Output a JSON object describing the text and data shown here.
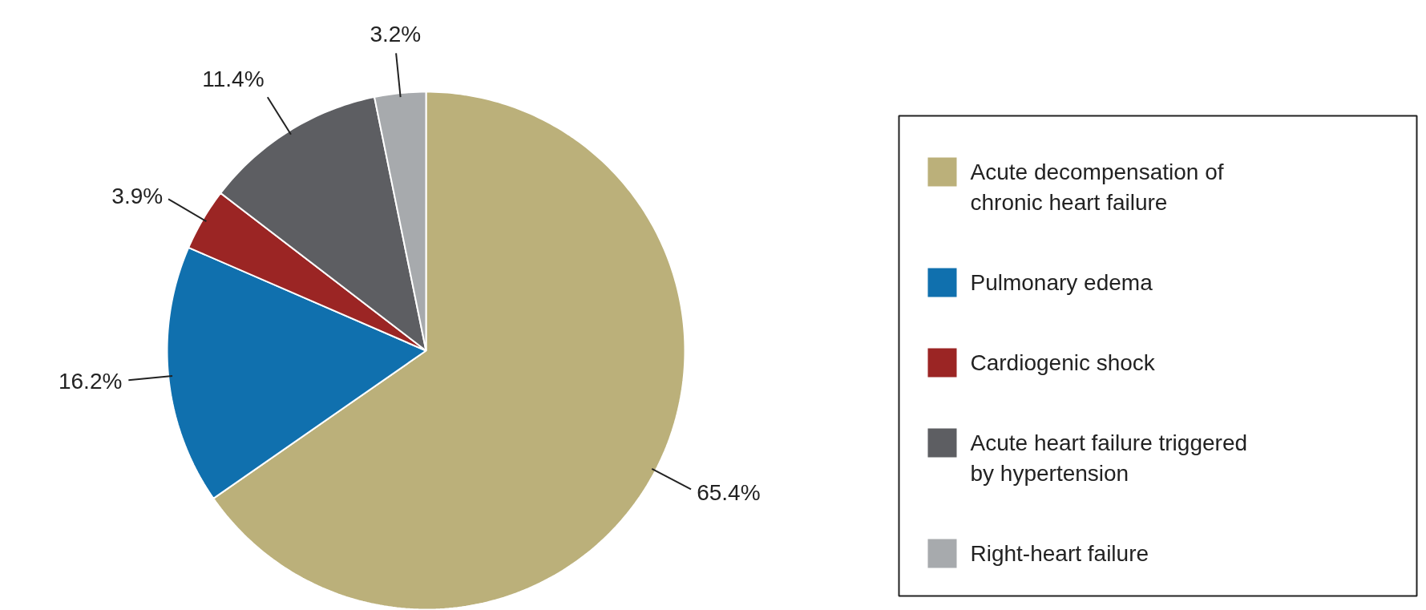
{
  "chart_data": {
    "type": "pie",
    "categories": [
      "Acute decompensation of chronic heart failure",
      "Pulmonary edema",
      "Cardiogenic shock",
      "Acute heart failure triggered by hypertension",
      "Right-heart failure"
    ],
    "values": [
      65.4,
      16.2,
      3.9,
      11.4,
      3.2
    ],
    "value_labels": [
      "65.4%",
      "16.2%",
      "3.9%",
      "11.4%",
      "3.2%"
    ],
    "colors": [
      "#bbb07a",
      "#1070ae",
      "#9b2524",
      "#5d5e62",
      "#a7aaad"
    ],
    "legend": "right"
  }
}
